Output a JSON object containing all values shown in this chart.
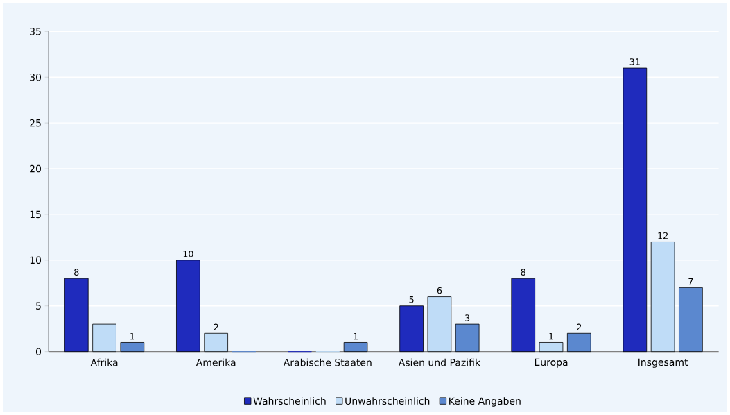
{
  "chart_data": {
    "type": "bar",
    "categories": [
      "Afrika",
      "Amerika",
      "Arabische Staaten",
      "Asien und Pazifik",
      "Europa",
      "Insgesamt"
    ],
    "series": [
      {
        "name": "Wahrscheinlich",
        "color": "#1f2bbd",
        "values": [
          8,
          10,
          0,
          5,
          8,
          31
        ],
        "value_labels": [
          "8",
          "10",
          null,
          "5",
          "8",
          "31"
        ]
      },
      {
        "name": "Unwahrscheinlich",
        "color": "#bfdcf7",
        "values": [
          3,
          2,
          0,
          6,
          1,
          12
        ],
        "value_labels": [
          null,
          "2",
          null,
          "6",
          "1",
          "12"
        ]
      },
      {
        "name": "Keine Angaben",
        "color": "#5b88cf",
        "values": [
          1,
          0,
          1,
          3,
          2,
          7
        ],
        "value_labels": [
          "1",
          null,
          "1",
          "3",
          "2",
          "7"
        ]
      }
    ],
    "ylim": [
      0,
      35
    ],
    "yticks": [
      0,
      5,
      10,
      15,
      20,
      25,
      30,
      35
    ],
    "grid": "y",
    "legend": "bottom"
  }
}
